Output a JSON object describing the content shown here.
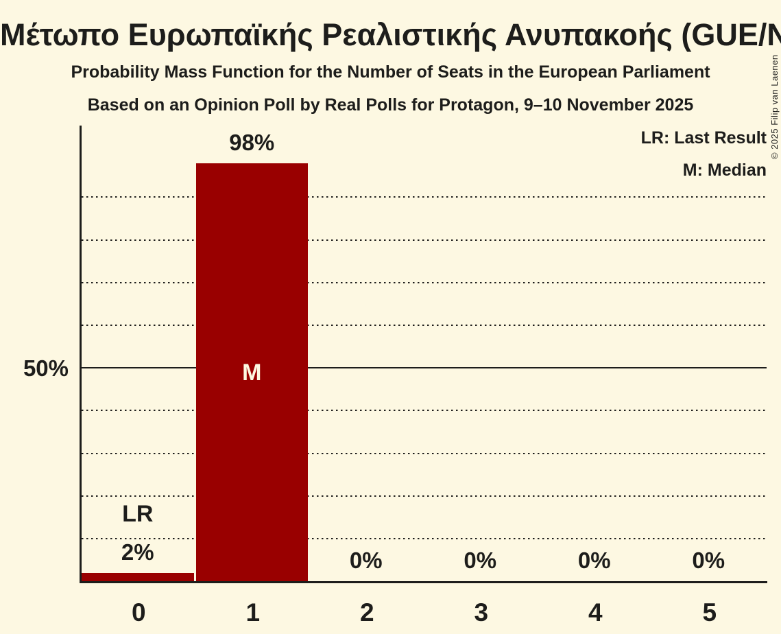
{
  "page": {
    "background_color": "#fdf8e2",
    "text_color": "#1d1d1b"
  },
  "header": {
    "title": "Μέτωπο Ευρωπαϊκής Ρεαλιστικής Ανυπακοής (GUE/NGL)",
    "subtitle": "Probability Mass Function for the Number of Seats in the European Parliament",
    "subsubtitle": "Based on an Opinion Poll by Real Polls for Protagon, 9–10 November 2025"
  },
  "legend": {
    "last_result": "LR: Last Result",
    "median": "M: Median"
  },
  "copyright": "© 2025 Filip van Laenen",
  "chart_data": {
    "type": "bar",
    "title": "Μέτωπο Ευρωπαϊκής Ρεαλιστικής Ανυπακοής (GUE/NGL)",
    "categories": [
      "0",
      "1",
      "2",
      "3",
      "4",
      "5"
    ],
    "values": [
      2,
      98,
      0,
      0,
      0,
      0
    ],
    "value_labels": [
      "2%",
      "98%",
      "0%",
      "0%",
      "0%",
      "0%"
    ],
    "bar_color": "#990000",
    "bar_label_color": "#fdf8e2",
    "ylim": [
      0,
      100
    ],
    "y_tick_labels": [
      {
        "pct": 50,
        "label": "50%"
      }
    ],
    "y_solid_gridline_pct": 50,
    "y_dotted_gridlines_pct": [
      10,
      20,
      30,
      40,
      60,
      70,
      80,
      90
    ],
    "grid": "dotted-horizontal",
    "legend_position": "top-right",
    "annotations": [
      {
        "category": "0",
        "label": "LR",
        "placement": "above-bar"
      },
      {
        "category": "1",
        "label": "M",
        "placement": "inside-bar"
      }
    ]
  }
}
